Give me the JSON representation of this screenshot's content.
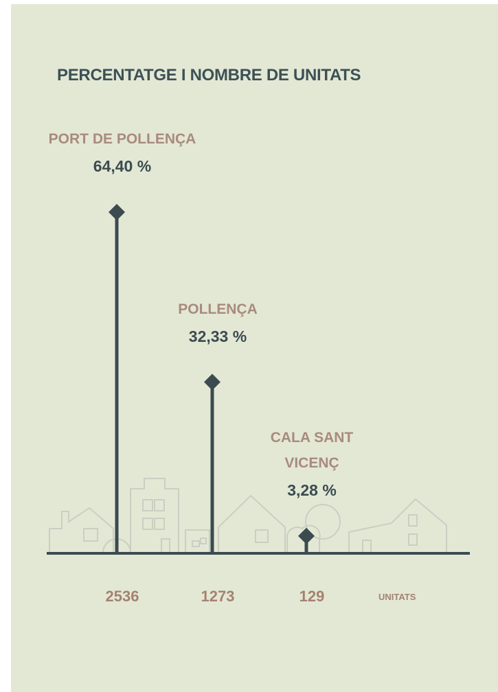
{
  "chart_data": {
    "type": "lollipop",
    "title": "PERCENTATGE I NOMBRE DE UNITATS",
    "categories": [
      "PORT DE POLLENÇA",
      "POLLENÇA",
      "CALA SANT VICENÇ"
    ],
    "values": [
      2536,
      1273,
      129
    ],
    "percentages": [
      64.4,
      32.33,
      3.28
    ],
    "percentage_labels": [
      "64,40 %",
      "32,33 %",
      "3,28 %"
    ],
    "unit_label": "UNITATS",
    "color": "#3b4b50"
  }
}
